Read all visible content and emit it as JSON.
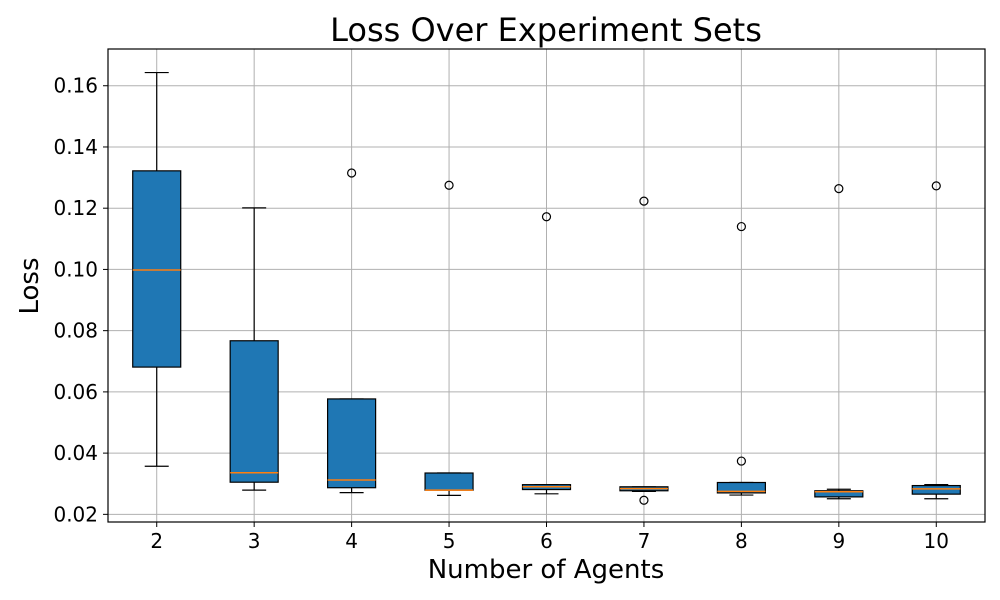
{
  "chart_data": {
    "type": "box",
    "title": "Loss Over Experiment Sets",
    "xlabel": "Number of Agents",
    "ylabel": "Loss",
    "grid": true,
    "ylim": [
      0.0175,
      0.172
    ],
    "yticks": [
      0.02,
      0.04,
      0.06,
      0.08,
      0.1,
      0.12,
      0.14,
      0.16
    ],
    "ytick_labels": [
      "0.02",
      "0.04",
      "0.06",
      "0.08",
      "0.10",
      "0.12",
      "0.14",
      "0.16"
    ],
    "categories": [
      "2",
      "3",
      "4",
      "5",
      "6",
      "7",
      "8",
      "9",
      "10"
    ],
    "box_color": "#1f77b4",
    "median_color": "#ff7f0e",
    "boxes": [
      {
        "category": "2",
        "whisker_low": 0.0357,
        "q1": 0.0681,
        "median": 0.0998,
        "q3": 0.1322,
        "whisker_high": 0.1643,
        "outliers": []
      },
      {
        "category": "3",
        "whisker_low": 0.0279,
        "q1": 0.0305,
        "median": 0.0336,
        "q3": 0.0767,
        "whisker_high": 0.1201,
        "outliers": []
      },
      {
        "category": "4",
        "whisker_low": 0.0271,
        "q1": 0.0287,
        "median": 0.0312,
        "q3": 0.0577,
        "whisker_high": 0.0577,
        "outliers": [
          0.1315
        ]
      },
      {
        "category": "5",
        "whisker_low": 0.0262,
        "q1": 0.0279,
        "median": 0.0279,
        "q3": 0.0335,
        "whisker_high": 0.0335,
        "outliers": [
          0.1275
        ]
      },
      {
        "category": "6",
        "whisker_low": 0.0267,
        "q1": 0.0281,
        "median": 0.029,
        "q3": 0.0297,
        "whisker_high": 0.0297,
        "outliers": [
          0.1172
        ]
      },
      {
        "category": "7",
        "whisker_low": 0.0275,
        "q1": 0.0277,
        "median": 0.0284,
        "q3": 0.029,
        "whisker_high": 0.029,
        "outliers": [
          0.0246,
          0.1223
        ]
      },
      {
        "category": "8",
        "whisker_low": 0.0263,
        "q1": 0.027,
        "median": 0.0275,
        "q3": 0.0304,
        "whisker_high": 0.0304,
        "outliers": [
          0.0374,
          0.114
        ]
      },
      {
        "category": "9",
        "whisker_low": 0.0251,
        "q1": 0.0257,
        "median": 0.0274,
        "q3": 0.0277,
        "whisker_high": 0.0282,
        "outliers": [
          0.1264
        ]
      },
      {
        "category": "10",
        "whisker_low": 0.0251,
        "q1": 0.0266,
        "median": 0.0283,
        "q3": 0.0294,
        "whisker_high": 0.0297,
        "outliers": [
          0.1273
        ]
      }
    ]
  }
}
